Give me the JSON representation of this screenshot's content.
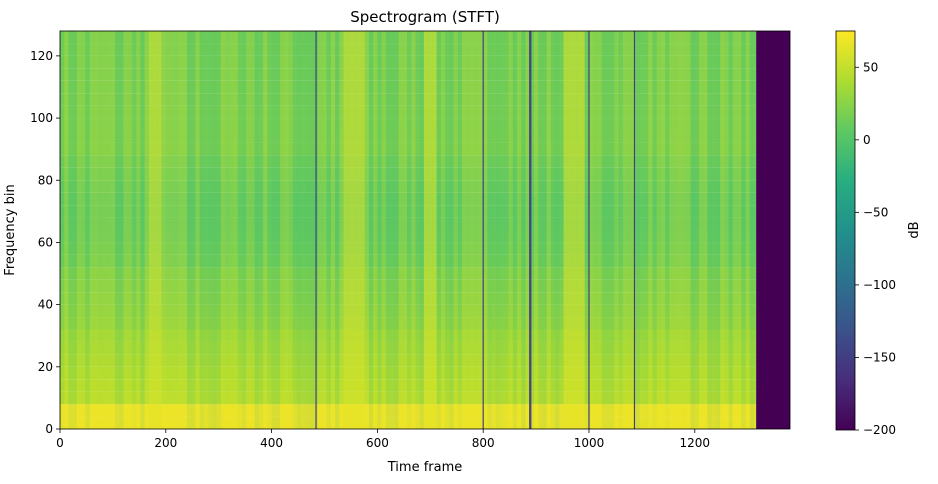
{
  "chart_data": {
    "type": "heatmap",
    "title": "Spectrogram (STFT)",
    "xlabel": "Time frame",
    "ylabel": "Frequency bin",
    "xlim": [
      0,
      1380
    ],
    "ylim": [
      0,
      128
    ],
    "x_ticks": [
      0,
      200,
      400,
      600,
      800,
      1000,
      1200
    ],
    "y_ticks": [
      0,
      20,
      40,
      60,
      80,
      100,
      120
    ],
    "colormap": "viridis",
    "colorbar": {
      "label": "dB",
      "range": [
        -200,
        75
      ],
      "ticks": [
        50,
        0,
        -50,
        -100,
        -150,
        -200
      ]
    },
    "silent_region": {
      "x_start": 1316,
      "x_end": 1380,
      "value_db": -200
    },
    "dark_lines_x": [
      484,
      800,
      888,
      890,
      1000,
      1086
    ],
    "bright_columns_x": [
      175,
      545,
      560,
      690,
      700,
      960,
      975
    ],
    "low_frequency_band": {
      "y_max": 8,
      "value_db": 70
    },
    "typical_high_frequency_db": 0
  }
}
